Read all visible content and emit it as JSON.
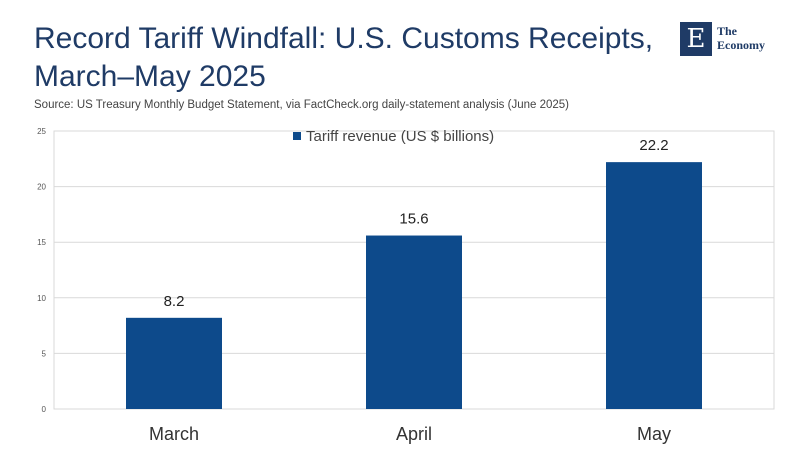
{
  "header": {
    "title_line1": "Record Tariff Windfall: U.S. Customs Receipts,",
    "title_line2": "March–May 2025",
    "source": "Source:  US Treasury Monthly Budget Statement, via FactCheck.org daily-statement analysis (June 2025)"
  },
  "logo": {
    "letter": "E",
    "line1": "The",
    "line2": "Economy"
  },
  "colors": {
    "bar": "#0d4a8b",
    "grid": "#d9d9d9",
    "title": "#1f3b66"
  },
  "chart_data": {
    "type": "bar",
    "title": "Record Tariff Windfall: U.S. Customs Receipts, March–May 2025",
    "categories": [
      "March",
      "April",
      "May"
    ],
    "series": [
      {
        "name": "Tariff revenue (US $ billions)",
        "values": [
          8.2,
          15.6,
          22.2
        ]
      }
    ],
    "data_labels": [
      "8.2",
      "15.6",
      "22.2"
    ],
    "ylim": [
      0,
      25
    ],
    "yticks": [
      0,
      5,
      10,
      15,
      20,
      25
    ],
    "xlabel": "",
    "ylabel": "",
    "grid": true,
    "legend_position": "top-center"
  }
}
